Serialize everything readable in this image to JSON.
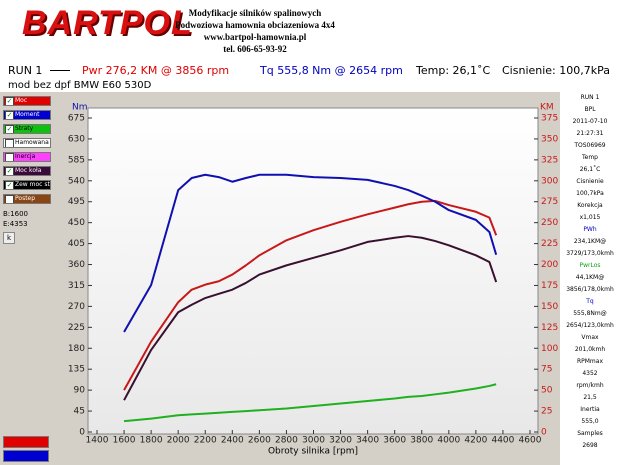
{
  "header": {
    "logo": "BARTPOL",
    "lines": [
      "Modyfikacje silników spalinowych",
      "Podwoziowa hamownia obciazeniowa 4x4",
      "www.bartpol-hamownia.pl",
      "tel. 606-65-93-92"
    ]
  },
  "summary": {
    "run": "RUN 1",
    "power": "Pwr  276,2 KM @ 3856 rpm",
    "torque": "Tq  555,8 Nm @ 2654 rpm",
    "temp": "Temp: 26,1˚C",
    "pressure": "Cisnienie: 100,7kPa"
  },
  "description": "mod bez dpf BMW E60 530D",
  "left_panel": {
    "checkboxes": [
      {
        "label": "Moc",
        "color": "#e00000",
        "checked": true
      },
      {
        "label": "Moment",
        "color": "#0000d0",
        "checked": true
      },
      {
        "label": "Straty",
        "color": "#10c010",
        "checked": true
      },
      {
        "label": "Hamowana",
        "color": "#ffffff",
        "checked": false
      },
      {
        "label": "Inercja",
        "color": "#ff40ff",
        "checked": false
      },
      {
        "label": "Moc koła",
        "color": "#3a0a3a",
        "checked": true
      },
      {
        "label": "Zew moc str",
        "color": "#000000",
        "checked": true
      },
      {
        "label": "Postep",
        "color": "#8b4513",
        "checked": false
      }
    ],
    "begin": "B:1600",
    "end": "E:4353",
    "button": "k"
  },
  "right_panel": [
    {
      "text": "RUN 1"
    },
    {
      "text": "BPL"
    },
    {
      "text": "2011-07-10"
    },
    {
      "text": "21:27:31"
    },
    {
      "text": "TOS06969"
    },
    {
      "text": "Temp"
    },
    {
      "text": "26,1˚C"
    },
    {
      "text": "Cisnienie"
    },
    {
      "text": "100,7kPa"
    },
    {
      "text": "Korekcja"
    },
    {
      "text": "x1,015"
    },
    {
      "text": "PWh",
      "color": "#0000c0"
    },
    {
      "text": "234,1KM@"
    },
    {
      "text": "3729/173,0kmh"
    },
    {
      "text": "PwrLos",
      "color": "#10a010"
    },
    {
      "text": "44,1KM@"
    },
    {
      "text": "3856/178,0kmh"
    },
    {
      "text": "Tq",
      "color": "#0000c0"
    },
    {
      "text": "555,8Nm@"
    },
    {
      "text": "2654/123,0kmh"
    },
    {
      "text": "Vmax"
    },
    {
      "text": "201,0kmh"
    },
    {
      "text": "RPMmax"
    },
    {
      "text": "4352"
    },
    {
      "text": "rpm/kmh"
    },
    {
      "text": "21,5"
    },
    {
      "text": "Inertia"
    },
    {
      "text": "555,0"
    },
    {
      "text": "Samples"
    },
    {
      "text": "2698"
    }
  ],
  "chart_data": {
    "type": "line",
    "xlabel": "Obroty silnika [rpm]",
    "ylabel": "Nm",
    "y2label": "KM",
    "x": [
      1600,
      1800,
      2000,
      2100,
      2200,
      2300,
      2400,
      2500,
      2600,
      2800,
      3000,
      3200,
      3400,
      3600,
      3700,
      3800,
      3900,
      4000,
      4200,
      4300,
      4350
    ],
    "xlim": [
      1400,
      4600
    ],
    "xticks": [
      1400,
      1600,
      1800,
      2000,
      2200,
      2400,
      2600,
      2800,
      3000,
      3200,
      3400,
      3600,
      3800,
      4000,
      4200,
      4400,
      4600
    ],
    "ylim": [
      0,
      675
    ],
    "yticks": [
      0,
      45,
      90,
      135,
      180,
      225,
      270,
      315,
      360,
      405,
      450,
      495,
      540,
      585,
      630,
      675
    ],
    "y2lim": [
      0,
      375
    ],
    "y2ticks": [
      0,
      25,
      50,
      75,
      100,
      125,
      150,
      175,
      200,
      225,
      250,
      275,
      300,
      325,
      350,
      375
    ],
    "series": [
      {
        "name": "Moc",
        "color": "#c81818",
        "axis": "y2",
        "values": [
          50,
          108,
          155,
          170,
          176,
          180,
          188,
          199,
          211,
          229,
          241,
          251,
          260,
          268,
          272,
          275,
          276,
          271,
          263,
          256,
          235
        ]
      },
      {
        "name": "Moment",
        "color": "#1010b0",
        "values": [
          215,
          316,
          520,
          546,
          553,
          548,
          538,
          546,
          553,
          553,
          548,
          546,
          542,
          529,
          520,
          508,
          495,
          477,
          456,
          430,
          381
        ]
      },
      {
        "name": "Straty",
        "color": "#20b020",
        "axis": "y2",
        "values": [
          13,
          16,
          20,
          21,
          22,
          23,
          24,
          25,
          26,
          28,
          31,
          34,
          37,
          40,
          42,
          43,
          45,
          47,
          52,
          55,
          57
        ]
      },
      {
        "name": "Moc koła",
        "color": "#3a1030",
        "axis": "y2",
        "values": [
          38,
          98,
          143,
          152,
          160,
          165,
          170,
          178,
          188,
          199,
          208,
          217,
          227,
          232,
          234,
          232,
          228,
          223,
          211,
          203,
          179
        ]
      }
    ]
  }
}
